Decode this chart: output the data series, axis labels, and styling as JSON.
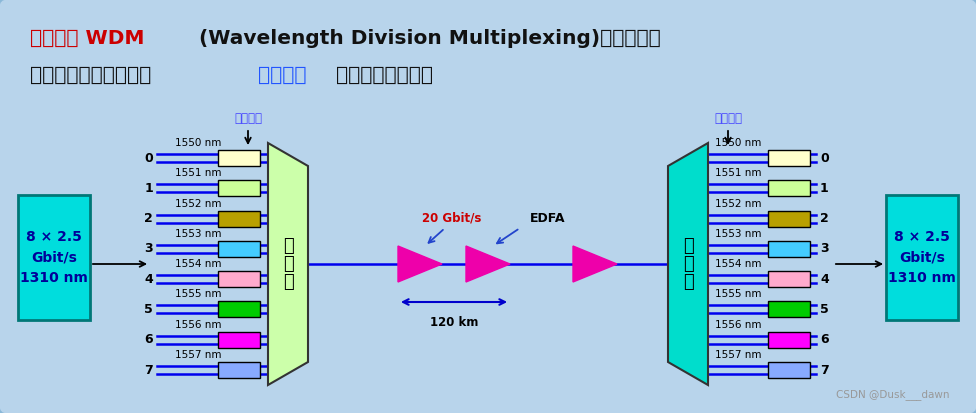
{
  "bg_color": "#b8d4eb",
  "channel_colors": [
    "#ffffcc",
    "#ccff99",
    "#b8a000",
    "#44ccff",
    "#ffaacc",
    "#00cc00",
    "#ff00ff",
    "#88aaff"
  ],
  "wavelengths": [
    "1550 nm",
    "1551 nm",
    "1552 nm",
    "1553 nm",
    "1554 nm",
    "1555 nm",
    "1556 nm",
    "1557 nm"
  ],
  "channel_nums": [
    "0",
    "1",
    "2",
    "3",
    "4",
    "5",
    "6",
    "7"
  ],
  "left_box_text": "8 × 2.5\nGbit/s\n1310 nm",
  "right_box_text": "8 × 2.5\nGbit/s\n1310 nm",
  "mux_label": "复\n用\n器",
  "demux_label": "分\n用\n器",
  "mod_label": "光调制器",
  "demod_label": "光解调器",
  "speed_label": "20 Gbit/s",
  "edfa_label": "EDFA",
  "dist_label": "120 km",
  "fiber_color": "#0000ee",
  "mux_color": "#ccffaa",
  "demux_color": "#00ddcc",
  "amplifier_color": "#ee00aa",
  "left_box_color": "#00dddd",
  "right_box_color": "#00dddd",
  "title1_red": "波分复用 WDM",
  "title1_black": " (Wavelength Division Multiplexing)：光的频分",
  "title2_black1": "复用。使用一根光纤来",
  "title2_blue": "同时传输",
  "title2_black2": "多个光载波信号。",
  "mod_arrow_color": "#000000",
  "label_blue_color": "#4444ff",
  "watermark": "CSDN @Dusk___dawn"
}
